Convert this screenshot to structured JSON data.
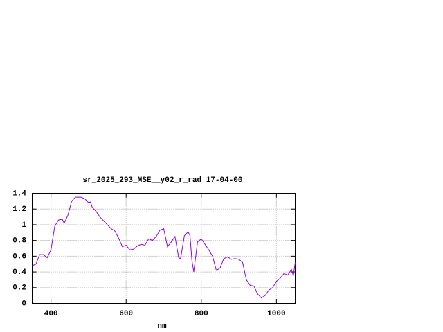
{
  "chart_data": {
    "type": "line",
    "title": "sr_2025_293_MSE__y02_r_rad 17-04-00",
    "xlabel": "nm",
    "x": [
      350,
      360,
      370,
      380,
      390,
      400,
      410,
      420,
      430,
      435,
      445,
      455,
      465,
      480,
      490,
      500,
      505,
      510,
      520,
      530,
      540,
      550,
      560,
      570,
      580,
      590,
      600,
      610,
      620,
      630,
      640,
      650,
      660,
      670,
      680,
      690,
      700,
      710,
      720,
      730,
      740,
      745,
      755,
      765,
      770,
      775,
      780,
      790,
      800,
      810,
      820,
      830,
      840,
      850,
      860,
      870,
      880,
      890,
      900,
      910,
      920,
      930,
      940,
      950,
      960,
      970,
      980,
      990,
      1000,
      1010,
      1020,
      1030,
      1040,
      1045,
      1050
    ],
    "values": [
      0.48,
      0.5,
      0.62,
      0.62,
      0.58,
      0.68,
      0.98,
      1.06,
      1.07,
      1.02,
      1.12,
      1.3,
      1.35,
      1.35,
      1.33,
      1.28,
      1.29,
      1.22,
      1.17,
      1.1,
      1.05,
      1.0,
      0.95,
      0.92,
      0.83,
      0.72,
      0.74,
      0.68,
      0.69,
      0.73,
      0.75,
      0.74,
      0.82,
      0.8,
      0.85,
      0.93,
      0.95,
      0.72,
      0.78,
      0.85,
      0.58,
      0.57,
      0.86,
      0.91,
      0.86,
      0.55,
      0.4,
      0.78,
      0.82,
      0.75,
      0.68,
      0.6,
      0.42,
      0.45,
      0.57,
      0.59,
      0.56,
      0.57,
      0.56,
      0.52,
      0.3,
      0.23,
      0.22,
      0.12,
      0.07,
      0.1,
      0.17,
      0.2,
      0.28,
      0.32,
      0.38,
      0.36,
      0.43,
      0.35,
      0.52
    ],
    "color": "#9400d3",
    "xlim": [
      350,
      1050
    ],
    "xticks": [
      400,
      600,
      800,
      1000
    ],
    "ylim": [
      0,
      1.4
    ],
    "yticks": [
      0,
      0.2,
      0.4,
      0.6,
      0.8,
      1,
      1.2,
      1.4
    ],
    "grid": true
  }
}
